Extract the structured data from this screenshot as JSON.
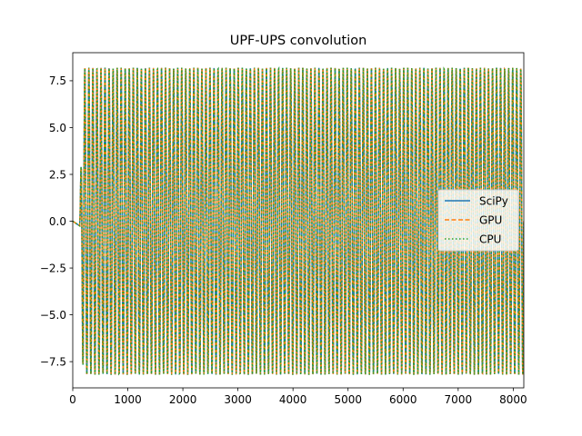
{
  "chart_data": {
    "type": "line",
    "title": "UPF-UPS convolution",
    "xlabel": "",
    "ylabel": "",
    "xlim": [
      0,
      8192
    ],
    "ylim": [
      -8.9,
      9.0
    ],
    "x_ticks": [
      0,
      1000,
      2000,
      3000,
      4000,
      5000,
      6000,
      7000,
      8000
    ],
    "x_tick_labels": [
      "0",
      "1000",
      "2000",
      "3000",
      "4000",
      "5000",
      "6000",
      "7000",
      "8000"
    ],
    "y_ticks": [
      -7.5,
      -5.0,
      -2.5,
      0.0,
      2.5,
      5.0,
      7.5
    ],
    "y_tick_labels": [
      "−7.5",
      "−5.0",
      "−2.5",
      "0.0",
      "2.5",
      "5.0",
      "7.5"
    ],
    "grid": false,
    "legend_position": "center-right",
    "signal": {
      "amplitude": 8.2,
      "onset_x": 128,
      "cycles": 110
    },
    "series": [
      {
        "name": "SciPy",
        "color": "#1f77b4",
        "style": "solid"
      },
      {
        "name": "GPU",
        "color": "#ff7f0e",
        "style": "dashed"
      },
      {
        "name": "CPU",
        "color": "#2ca02c",
        "style": "dotted"
      }
    ]
  }
}
